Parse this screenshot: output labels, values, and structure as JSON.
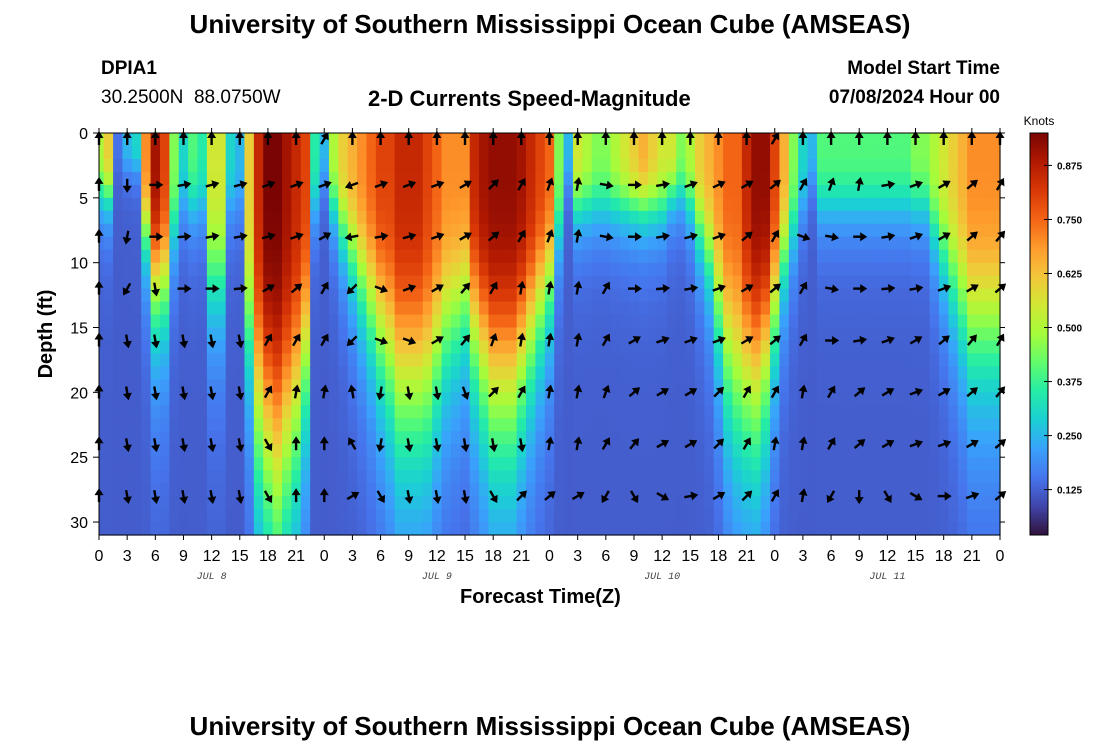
{
  "title": "University of Southern Mississippi Ocean Cube (AMSEAS)",
  "footer_title": "University of Southern Mississippi Ocean Cube (AMSEAS)",
  "station": {
    "name": "DPIA1",
    "coords": "30.2500N  88.0750W"
  },
  "model_start": {
    "label": "Model Start Time",
    "value": "07/08/2024 Hour 00"
  },
  "chart_data": {
    "type": "heatmap",
    "title": "2-D Currents Speed-Magnitude",
    "xlabel": "Forecast Time(Z)",
    "ylabel": "Depth (ft)",
    "x_ticks": [
      "0",
      "3",
      "6",
      "9",
      "12",
      "15",
      "18",
      "21",
      "0",
      "3",
      "6",
      "9",
      "12",
      "15",
      "18",
      "21",
      "0",
      "3",
      "6",
      "9",
      "12",
      "15",
      "18",
      "21",
      "0",
      "3",
      "6",
      "9",
      "12",
      "15",
      "18",
      "21",
      "0"
    ],
    "day_labels": [
      "JUL 8",
      "JUL 9",
      "JUL 10",
      "JUL 11"
    ],
    "xlim_hours": [
      0,
      96
    ],
    "y_ticks": [
      0,
      5,
      10,
      15,
      20,
      25,
      30
    ],
    "ylim_ft": [
      0,
      31
    ],
    "colorbar": {
      "label": "Knots",
      "ticks": [
        0.125,
        0.25,
        0.375,
        0.5,
        0.625,
        0.75,
        0.875
      ],
      "tick_labels": [
        "0.125",
        "0.250",
        "0.375",
        "0.500",
        "0.625",
        "0.750",
        "0.875"
      ],
      "range": [
        0.02,
        0.95
      ],
      "colors": [
        "#30123b",
        "#4145ab",
        "#4675ed",
        "#39a2fc",
        "#1bcfd4",
        "#24eca6",
        "#61fc6c",
        "#a4fc3b",
        "#d1e834",
        "#f3c63a",
        "#fe9b2d",
        "#f36315",
        "#d93806",
        "#b11901",
        "#7a0403"
      ]
    },
    "speed_field": {
      "hours": [
        0,
        1,
        2,
        3,
        4,
        5,
        6,
        7,
        8,
        9,
        10,
        11,
        12,
        13,
        14,
        15,
        16,
        17,
        18,
        19,
        20,
        21,
        22,
        23,
        24,
        25,
        26,
        27,
        28,
        29,
        30,
        31,
        32,
        33,
        34,
        35,
        36,
        37,
        38,
        39,
        40,
        41,
        42,
        43,
        44,
        45,
        46,
        47,
        48,
        49,
        50,
        51,
        52,
        53,
        54,
        55,
        56,
        57,
        58,
        59,
        60,
        61,
        62,
        63,
        64,
        65,
        66,
        67,
        68,
        69,
        70,
        71,
        72,
        73,
        74,
        75,
        76,
        77,
        78,
        79,
        80,
        81,
        82,
        83,
        84,
        85,
        86,
        87,
        88,
        89,
        90,
        91,
        92,
        93,
        94,
        95,
        96
      ],
      "surface_profile": [
        0.5,
        0.6,
        0.15,
        0.25,
        0.3,
        0.7,
        0.9,
        0.8,
        0.45,
        0.3,
        0.4,
        0.35,
        0.55,
        0.55,
        0.3,
        0.25,
        0.6,
        0.85,
        0.95,
        0.95,
        0.9,
        0.85,
        0.8,
        0.35,
        0.25,
        0.5,
        0.6,
        0.65,
        0.7,
        0.75,
        0.8,
        0.8,
        0.85,
        0.85,
        0.85,
        0.8,
        0.75,
        0.7,
        0.7,
        0.7,
        0.85,
        0.9,
        0.92,
        0.92,
        0.92,
        0.9,
        0.85,
        0.8,
        0.75,
        0.45,
        0.25,
        0.55,
        0.5,
        0.45,
        0.45,
        0.5,
        0.55,
        0.6,
        0.65,
        0.6,
        0.55,
        0.55,
        0.45,
        0.5,
        0.6,
        0.65,
        0.7,
        0.75,
        0.75,
        0.85,
        0.92,
        0.92,
        0.8,
        0.65,
        0.45,
        0.3,
        0.25,
        0.4,
        0.4,
        0.4,
        0.4,
        0.4,
        0.4,
        0.4,
        0.4,
        0.4,
        0.4,
        0.45,
        0.45,
        0.5,
        0.55,
        0.6,
        0.65,
        0.7,
        0.7,
        0.7,
        0.7
      ],
      "plume_depth_ft": [
        5,
        5,
        3,
        3,
        3,
        8,
        12,
        12,
        8,
        6,
        6,
        6,
        12,
        12,
        6,
        6,
        16,
        22,
        24,
        26,
        24,
        22,
        18,
        6,
        4,
        6,
        8,
        10,
        12,
        14,
        16,
        18,
        20,
        20,
        20,
        20,
        18,
        16,
        15,
        14,
        16,
        18,
        20,
        20,
        20,
        18,
        16,
        14,
        12,
        8,
        4,
        6,
        6,
        6,
        6,
        6,
        6,
        6,
        6,
        6,
        6,
        5,
        5,
        6,
        8,
        10,
        14,
        18,
        20,
        20,
        20,
        18,
        14,
        10,
        8,
        6,
        4,
        6,
        6,
        6,
        6,
        6,
        6,
        6,
        6,
        6,
        6,
        6,
        6,
        8,
        10,
        12,
        14,
        16,
        16,
        16,
        16
      ],
      "deep_speed": 0.12
    },
    "arrow_rows_ft": [
      0,
      4,
      8,
      12,
      16,
      20,
      24,
      28
    ],
    "arrow_cols_hours": [
      0,
      3,
      6,
      9,
      12,
      15,
      18,
      21,
      24,
      27,
      30,
      33,
      36,
      39,
      42,
      45,
      48,
      51,
      54,
      57,
      60,
      63,
      66,
      69,
      72,
      75,
      78,
      81,
      84,
      87,
      90,
      93,
      96
    ],
    "arrow_angles_deg": [
      [
        90,
        90,
        90,
        90,
        90,
        90,
        90,
        90,
        60,
        90,
        90,
        90,
        90,
        90,
        90,
        90,
        90,
        90,
        90,
        90,
        90,
        90,
        90,
        90,
        60,
        90,
        90,
        90,
        90,
        90,
        90,
        90,
        90
      ],
      [
        90,
        -90,
        0,
        10,
        15,
        15,
        20,
        20,
        20,
        200,
        20,
        20,
        20,
        30,
        45,
        60,
        70,
        80,
        -10,
        0,
        10,
        20,
        25,
        30,
        40,
        60,
        70,
        80,
        10,
        20,
        30,
        40,
        60
      ],
      [
        90,
        -100,
        0,
        5,
        10,
        10,
        15,
        20,
        30,
        190,
        10,
        15,
        20,
        30,
        40,
        60,
        70,
        80,
        -10,
        0,
        10,
        15,
        20,
        40,
        60,
        -20,
        -10,
        0,
        10,
        20,
        30,
        40,
        50
      ],
      [
        90,
        -120,
        -80,
        0,
        0,
        5,
        30,
        40,
        60,
        225,
        -20,
        20,
        30,
        50,
        60,
        80,
        80,
        80,
        60,
        0,
        5,
        10,
        20,
        30,
        40,
        60,
        -10,
        0,
        5,
        10,
        20,
        30,
        40
      ],
      [
        90,
        -80,
        -80,
        -80,
        -80,
        -80,
        60,
        60,
        60,
        225,
        -20,
        -20,
        30,
        50,
        70,
        80,
        80,
        80,
        60,
        30,
        20,
        20,
        20,
        30,
        40,
        60,
        0,
        10,
        20,
        30,
        40,
        50,
        60
      ],
      [
        90,
        -80,
        -80,
        -80,
        -80,
        -80,
        60,
        80,
        80,
        100,
        -100,
        -80,
        -80,
        -70,
        45,
        60,
        80,
        80,
        70,
        40,
        30,
        30,
        45,
        60,
        60,
        80,
        60,
        40,
        30,
        20,
        30,
        40,
        50
      ],
      [
        90,
        -80,
        -80,
        -80,
        -80,
        -80,
        -60,
        90,
        90,
        120,
        -100,
        -80,
        -80,
        -80,
        -80,
        -80,
        80,
        80,
        60,
        50,
        30,
        30,
        45,
        60,
        80,
        80,
        60,
        40,
        30,
        20,
        20,
        30,
        40
      ],
      [
        90,
        -80,
        -80,
        -80,
        -80,
        -80,
        -60,
        90,
        90,
        30,
        -60,
        -80,
        -80,
        -80,
        -60,
        45,
        40,
        30,
        -120,
        -60,
        -30,
        10,
        30,
        45,
        60,
        80,
        -120,
        -90,
        -60,
        -30,
        0,
        20,
        40
      ]
    ]
  }
}
